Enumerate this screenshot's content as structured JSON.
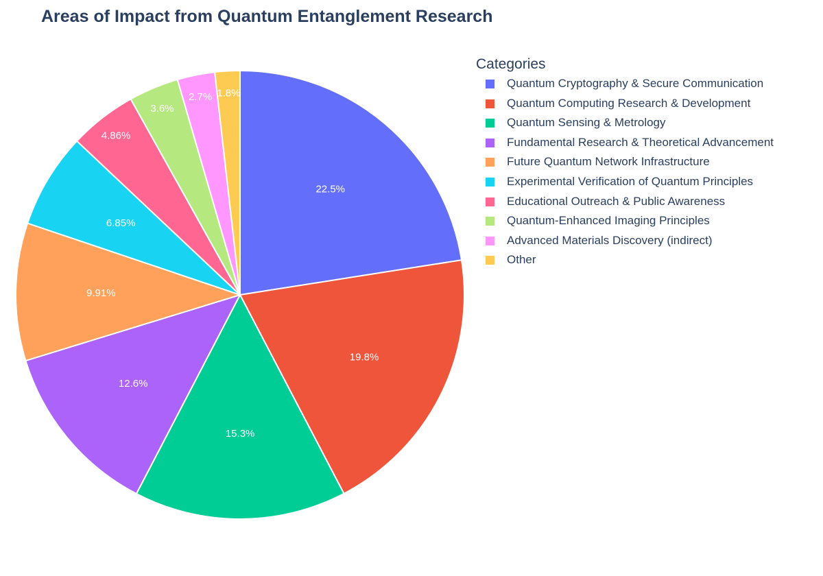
{
  "chart_data": {
    "type": "pie",
    "title": "Areas of Impact from Quantum Entanglement Research",
    "legend_title": "Categories",
    "legend_position": "right",
    "sort": "descending",
    "direction": "clockwise",
    "slices": [
      {
        "label": "Quantum Cryptography & Secure Communication",
        "value": 22.5,
        "text": "22.5%",
        "color": "#636efa"
      },
      {
        "label": "Quantum Computing Research & Development",
        "value": 19.8,
        "text": "19.8%",
        "color": "#ef553b"
      },
      {
        "label": "Quantum Sensing & Metrology",
        "value": 15.3,
        "text": "15.3%",
        "color": "#00cc96"
      },
      {
        "label": "Fundamental Research & Theoretical Advancement",
        "value": 12.6,
        "text": "12.6%",
        "color": "#ab63fa"
      },
      {
        "label": "Future Quantum Network Infrastructure",
        "value": 9.91,
        "text": "9.91%",
        "color": "#ffa15a"
      },
      {
        "label": "Experimental Verification of Quantum Principles",
        "value": 6.85,
        "text": "6.85%",
        "color": "#19d3f3"
      },
      {
        "label": "Educational Outreach & Public Awareness",
        "value": 4.86,
        "text": "4.86%",
        "color": "#ff6692"
      },
      {
        "label": "Quantum-Enhanced Imaging Principles",
        "value": 3.6,
        "text": "3.6%",
        "color": "#b6e880"
      },
      {
        "label": "Advanced Materials Discovery (indirect)",
        "value": 2.7,
        "text": "2.7%",
        "color": "#ff97ff"
      },
      {
        "label": "Other",
        "value": 1.8,
        "text": "1.8%",
        "color": "#fecb52"
      }
    ]
  }
}
